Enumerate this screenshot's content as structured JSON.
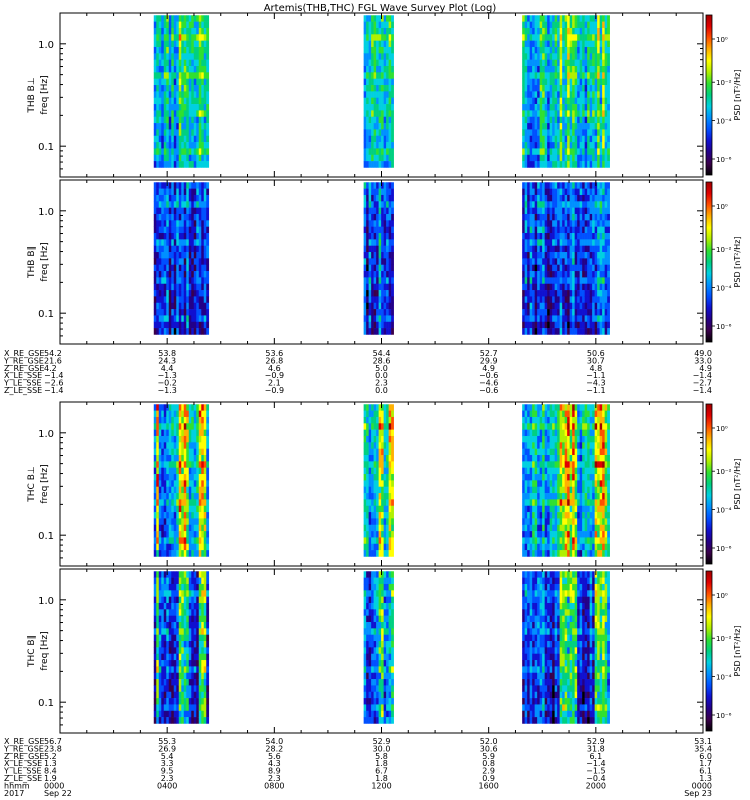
{
  "title": "Artemis(THB,THC) FGL Wave Survey Plot (Log)",
  "freq_label": "freq [Hz]",
  "psd_label": "PSD [nT²/Hz]",
  "cb_ticks": [
    "10⁰",
    "10⁻²",
    "10⁻⁴",
    "10⁻⁶"
  ],
  "freq_ticks": [
    "1.0",
    "0.1"
  ],
  "colormap": [
    "#000000",
    "#3a004a",
    "#230088",
    "#1010d0",
    "#0050ff",
    "#0090ff",
    "#00d0e0",
    "#00d080",
    "#30e030",
    "#b0f000",
    "#ffff00",
    "#ffb000",
    "#ff5000",
    "#e00000",
    "#a00000"
  ],
  "chart_data": [
    {
      "type": "heatmap",
      "name": "THB B⊥",
      "ylabel": "THB B⊥",
      "y": "freq [Hz]",
      "ylim": [
        0.05,
        2.0
      ],
      "yscale": "log",
      "zlabel": "PSD [nT²/Hz]",
      "data_segments": [
        [
          "0330",
          "0535"
        ],
        [
          "1120",
          "1225"
        ],
        [
          "1715",
          "2030"
        ]
      ],
      "seed": 11,
      "base": 0.46,
      "spread": 0.18,
      "hot": 0.1
    },
    {
      "type": "heatmap",
      "name": "THB B∥",
      "ylabel": "THB B∥",
      "y": "freq [Hz]",
      "ylim": [
        0.05,
        2.0
      ],
      "yscale": "log",
      "zlabel": "PSD [nT²/Hz]",
      "data_segments": [
        [
          "0330",
          "0535"
        ],
        [
          "1120",
          "1225"
        ],
        [
          "1715",
          "2030"
        ]
      ],
      "seed": 23,
      "base": 0.3,
      "spread": 0.2,
      "hot": 0.05
    },
    {
      "type": "heatmap",
      "name": "THC B⊥",
      "ylabel": "THC B⊥",
      "y": "freq [Hz]",
      "ylim": [
        0.05,
        2.0
      ],
      "yscale": "log",
      "zlabel": "PSD [nT²/Hz]",
      "data_segments": [
        [
          "0330",
          "0535"
        ],
        [
          "1120",
          "1225"
        ],
        [
          "1715",
          "2030"
        ]
      ],
      "seed": 37,
      "base": 0.44,
      "spread": 0.18,
      "hot": 0.3
    },
    {
      "type": "heatmap",
      "name": "THC B∥",
      "ylabel": "THC B∥",
      "y": "freq [Hz]",
      "ylim": [
        0.05,
        2.0
      ],
      "yscale": "log",
      "zlabel": "PSD [nT²/Hz]",
      "data_segments": [
        [
          "0330",
          "0535"
        ],
        [
          "1120",
          "1225"
        ],
        [
          "1715",
          "2030"
        ]
      ],
      "seed": 51,
      "base": 0.3,
      "spread": 0.2,
      "hot": 0.22
    }
  ],
  "tick_tables": [
    {
      "rows": [
        {
          "label": "X_RE_GSE",
          "values": [
            "54.2",
            "53.8",
            "53.6",
            "54.4",
            "52.7",
            "50.6",
            "49.0"
          ]
        },
        {
          "label": "Y_RE_GSE",
          "values": [
            "21.6",
            "24.3",
            "26.8",
            "28.6",
            "29.9",
            "30.7",
            "33.0"
          ]
        },
        {
          "label": "Z_RE_GSE",
          "values": [
            "4.2",
            "4.4",
            "4.6",
            "5.0",
            "4.9",
            "4.8",
            "4.9"
          ]
        },
        {
          "label": "X_LE_SSE",
          "values": [
            "−1.4",
            "−1.3",
            "−0.9",
            "0.0",
            "−0.6",
            "−1.1",
            "−1.4"
          ]
        },
        {
          "label": "Y_LE_SSE",
          "values": [
            "−2.6",
            "−0.2",
            "2.1",
            "2.3",
            "−4.6",
            "−4.3",
            "−2.7"
          ]
        },
        {
          "label": "Z_LE_SSE",
          "values": [
            "−1.4",
            "−1.3",
            "−0.9",
            "0.0",
            "−0.6",
            "−1.1",
            "−1.4"
          ]
        }
      ]
    },
    {
      "rows": [
        {
          "label": "X_RE_GSE",
          "values": [
            "56.7",
            "55.3",
            "54.0",
            "52.9",
            "52.0",
            "52.9",
            "53.1"
          ]
        },
        {
          "label": "Y_RE_GSE",
          "values": [
            "23.8",
            "26.9",
            "28.2",
            "30.0",
            "30.6",
            "31.8",
            "35.4"
          ]
        },
        {
          "label": "Z_RE_GSE",
          "values": [
            "5.2",
            "5.4",
            "5.6",
            "5.8",
            "5.9",
            "6.1",
            "6.0"
          ]
        },
        {
          "label": "X_LE_SSE",
          "values": [
            "1.3",
            "3.3",
            "4.3",
            "1.8",
            "0.8",
            "−1.4",
            "1.7"
          ]
        },
        {
          "label": "Y_LE_SSE",
          "values": [
            "8.4",
            "9.5",
            "8.9",
            "6.7",
            "2.9",
            "−1.5",
            "6.1"
          ]
        },
        {
          "label": "Z_LE_SSE",
          "values": [
            "1.9",
            "2.3",
            "2.3",
            "1.8",
            "0.9",
            "−0.4",
            "1.3"
          ]
        },
        {
          "label": "hhmm",
          "values": [
            "0000",
            "0400",
            "0800",
            "1200",
            "1600",
            "2000",
            "0000"
          ]
        },
        {
          "label": "2017",
          "values": [
            "Sep 22",
            "",
            "",
            "",
            "",
            "",
            "Sep 23"
          ]
        }
      ]
    }
  ]
}
